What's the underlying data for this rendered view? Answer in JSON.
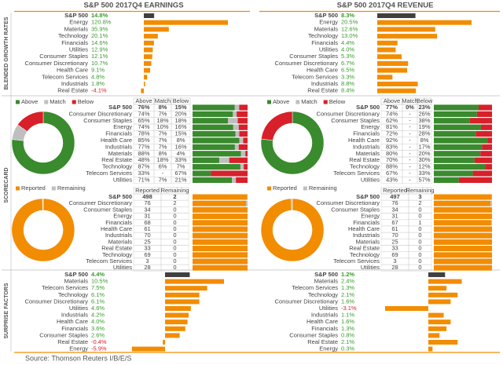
{
  "headers": [
    "S&P 500 2017Q4 EARNINGS",
    "S&P 500 2017Q4 REVENUE"
  ],
  "sections": [
    "BLENDED GROWTH RATES",
    "SCORECARD",
    "SURPRISE FACTORS"
  ],
  "source": "Source: Thomson Reuters I/B/E/S",
  "chart_data": [
    {
      "type": "bar",
      "color": "#f28c00",
      "highlight_color": "#404040",
      "categories": [
        "S&P 500",
        "Energy",
        "Materials",
        "Technology",
        "Financials",
        "Utilities",
        "Consumer Staples",
        "Consumer Discretionary",
        "Health Care",
        "Telecom Services",
        "Industrials",
        "Real Estate"
      ],
      "values": [
        14.8,
        120.8,
        35.9,
        20.1,
        14.6,
        12.9,
        12.1,
        10.7,
        9.1,
        4.8,
        1.8,
        -4.1
      ],
      "value_labels": [
        "14.8%",
        "120.8%",
        "35.9%",
        "20.1%",
        "14.6%",
        "12.9%",
        "12.1%",
        "10.7%",
        "9.1%",
        "4.8%",
        "1.8%",
        "-4.1%"
      ]
    },
    {
      "type": "bar",
      "color": "#f28c00",
      "highlight_color": "#404040",
      "categories": [
        "S&P 500",
        "Energy",
        "Materials",
        "Technology",
        "Financials",
        "Utilities",
        "Consumer Staples",
        "Consumer Discretionary",
        "Health Care",
        "Telecom Services",
        "Industrials",
        "Real Estate"
      ],
      "values": [
        8.3,
        20.5,
        12.6,
        13.0,
        4.4,
        4.0,
        5.3,
        6.7,
        6.5,
        3.3,
        8.8,
        8.4
      ],
      "value_labels": [
        "8.3%",
        "20.5%",
        "12.6%",
        "13.0%",
        "4.4%",
        "4.0%",
        "5.3%",
        "6.7%",
        "6.5%",
        "3.3%",
        "8.8%",
        "8.4%"
      ]
    },
    {
      "type": "stackedbar",
      "categories": [
        "S&P 500",
        "Consumer Discretionary",
        "Consumer Staples",
        "Energy",
        "Financials",
        "Health Care",
        "Industrials",
        "Materials",
        "Real Estate",
        "Technology",
        "Telecom Services",
        "Utilities"
      ],
      "series": [
        {
          "name": "Above",
          "color": "#3a8a2e",
          "values": [
            76,
            74,
            65,
            74,
            78,
            85,
            77,
            88,
            48,
            87,
            33,
            71
          ],
          "value_labels": [
            "76%",
            "74%",
            "65%",
            "74%",
            "78%",
            "85%",
            "77%",
            "88%",
            "48%",
            "87%",
            "33%",
            "71%"
          ]
        },
        {
          "name": "Match",
          "color": "#bfbfbf",
          "values": [
            8,
            7,
            18,
            10,
            7,
            7,
            7,
            8,
            18,
            6,
            0,
            7
          ],
          "value_labels": [
            "8%",
            "7%",
            "18%",
            "10%",
            "7%",
            "7%",
            "7%",
            "8%",
            "18%",
            "6%",
            "-",
            "7%"
          ]
        },
        {
          "name": "Below",
          "color": "#d7202a",
          "values": [
            15,
            20,
            18,
            16,
            15,
            8,
            16,
            4,
            33,
            7,
            67,
            21
          ],
          "value_labels": [
            "15%",
            "20%",
            "18%",
            "16%",
            "15%",
            "8%",
            "16%",
            "4%",
            "33%",
            "7%",
            "67%",
            "21%"
          ]
        }
      ]
    },
    {
      "type": "stackedbar",
      "categories": [
        "S&P 500",
        "Consumer Discretionary",
        "Consumer Staples",
        "Energy",
        "Financials",
        "Health Care",
        "Industrials",
        "Materials",
        "Real Estate",
        "Technology",
        "Telecom Services",
        "Utilities"
      ],
      "series": [
        {
          "name": "Above",
          "color": "#3a8a2e",
          "values": [
            77,
            74,
            62,
            81,
            72,
            92,
            83,
            80,
            70,
            88,
            67,
            43
          ],
          "value_labels": [
            "77%",
            "74%",
            "62%",
            "81%",
            "72%",
            "92%",
            "83%",
            "80%",
            "70%",
            "88%",
            "67%",
            "43%"
          ]
        },
        {
          "name": "Match",
          "color": "#bfbfbf",
          "values": [
            0,
            0,
            0,
            0,
            0,
            0,
            0,
            0,
            0,
            0,
            0,
            0
          ],
          "value_labels": [
            "0%",
            "-",
            "-",
            "-",
            "-",
            "-",
            "-",
            "-",
            "-",
            "-",
            "-",
            "-"
          ]
        },
        {
          "name": "Below",
          "color": "#d7202a",
          "values": [
            23,
            26,
            38,
            19,
            28,
            8,
            17,
            20,
            30,
            12,
            33,
            57
          ],
          "value_labels": [
            "23%",
            "26%",
            "38%",
            "19%",
            "28%",
            "8%",
            "17%",
            "20%",
            "30%",
            "12%",
            "33%",
            "57%"
          ]
        }
      ]
    },
    {
      "type": "completion",
      "categories": [
        "S&P 500",
        "Consumer Discretionary",
        "Consumer Staples",
        "Energy",
        "Financials",
        "Health Care",
        "Industrials",
        "Materials",
        "Real Estate",
        "Technology",
        "Telecom Services",
        "Utilities"
      ],
      "series": [
        {
          "name": "Reported",
          "color": "#f28c00",
          "values": [
            498,
            76,
            34,
            31,
            68,
            61,
            70,
            25,
            33,
            69,
            3,
            28
          ]
        },
        {
          "name": "Remaining",
          "color": "#bfbfbf",
          "values": [
            2,
            2,
            0,
            0,
            0,
            0,
            0,
            0,
            0,
            0,
            0,
            0
          ]
        }
      ]
    },
    {
      "type": "completion",
      "categories": [
        "S&P 500",
        "Consumer Discretionary",
        "Consumer Staples",
        "Energy",
        "Financials",
        "Health Care",
        "Industrials",
        "Materials",
        "Real Estate",
        "Technology",
        "Telecom Services",
        "Utilities"
      ],
      "series": [
        {
          "name": "Reported",
          "color": "#f28c00",
          "values": [
            497,
            76,
            34,
            31,
            67,
            61,
            70,
            25,
            33,
            69,
            3,
            28
          ]
        },
        {
          "name": "Remaining",
          "color": "#bfbfbf",
          "values": [
            3,
            2,
            0,
            0,
            1,
            0,
            0,
            0,
            0,
            0,
            0,
            0
          ]
        }
      ]
    },
    {
      "type": "bar",
      "color": "#f28c00",
      "highlight_color": "#404040",
      "categories": [
        "S&P 500",
        "Materials",
        "Telecom Services",
        "Technology",
        "Consumer Discretionary",
        "Utilities",
        "Industrials",
        "Health Care",
        "Financials",
        "Consumer Staples",
        "Real Estate",
        "Energy"
      ],
      "values": [
        4.4,
        10.5,
        7.5,
        6.1,
        6.1,
        4.6,
        4.2,
        4.0,
        3.6,
        2.6,
        -0.4,
        -5.9
      ],
      "value_labels": [
        "4.4%",
        "10.5%",
        "7.5%",
        "6.1%",
        "6.1%",
        "4.6%",
        "4.2%",
        "4.0%",
        "3.6%",
        "2.6%",
        "-0.4%",
        "-5.9%"
      ]
    },
    {
      "type": "bar",
      "color": "#f28c00",
      "highlight_color": "#404040",
      "categories": [
        "S&P 500",
        "Materials",
        "Telecom Services",
        "Technology",
        "Consumer Discretionary",
        "Utilities",
        "Industrials",
        "Health Care",
        "Financials",
        "Consumer Staples",
        "Real Estate",
        "Energy"
      ],
      "values": [
        1.2,
        2.4,
        1.3,
        2.1,
        1.6,
        -3.1,
        1.1,
        1.6,
        1.3,
        0.8,
        2.1,
        0.3
      ],
      "value_labels": [
        "1.2%",
        "2.4%",
        "1.3%",
        "2.1%",
        "1.6%",
        "-3.1%",
        "1.1%",
        "1.6%",
        "1.3%",
        "0.8%",
        "2.1%",
        "0.3%"
      ]
    }
  ]
}
